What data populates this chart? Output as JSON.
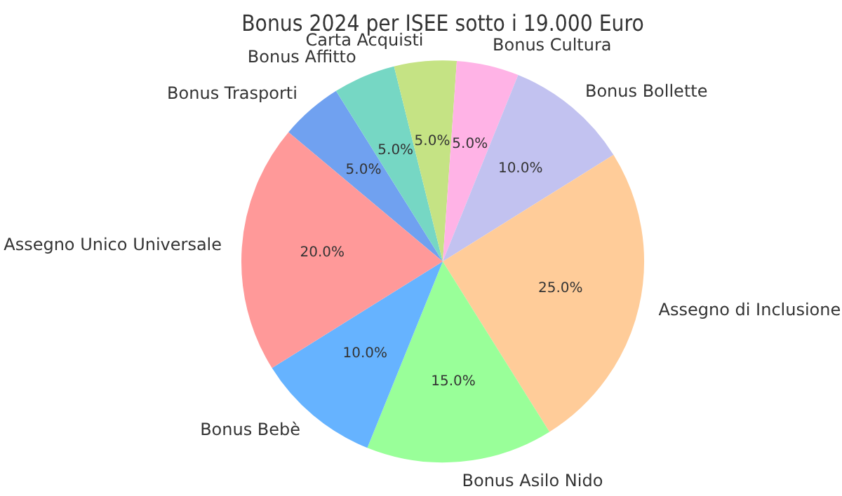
{
  "chart_data": {
    "type": "pie",
    "title": "Bonus 2024 per ISEE sotto i 19.000 Euro",
    "categories": [
      "Bonus Trasporti",
      "Bonus Affitto",
      "Carta Acquisti",
      "Bonus Cultura",
      "Bonus Bollette",
      "Assegno di Inclusione",
      "Bonus Asilo Nido",
      "Bonus Bebè",
      "Assegno Unico Universale"
    ],
    "values": [
      5,
      5,
      5,
      5,
      10,
      25,
      15,
      10,
      20
    ],
    "colors": [
      "#70a1f0",
      "#76d7c4",
      "#c5e384",
      "#ffb3e6",
      "#c2c2f0",
      "#ffcc99",
      "#99ff99",
      "#66b3ff",
      "#ff9999"
    ],
    "value_labels": [
      "5.0%",
      "5.0%",
      "5.0%",
      "5.0%",
      "10.0%",
      "25.0%",
      "15.0%",
      "10.0%",
      "20.0%"
    ],
    "legend": false
  }
}
